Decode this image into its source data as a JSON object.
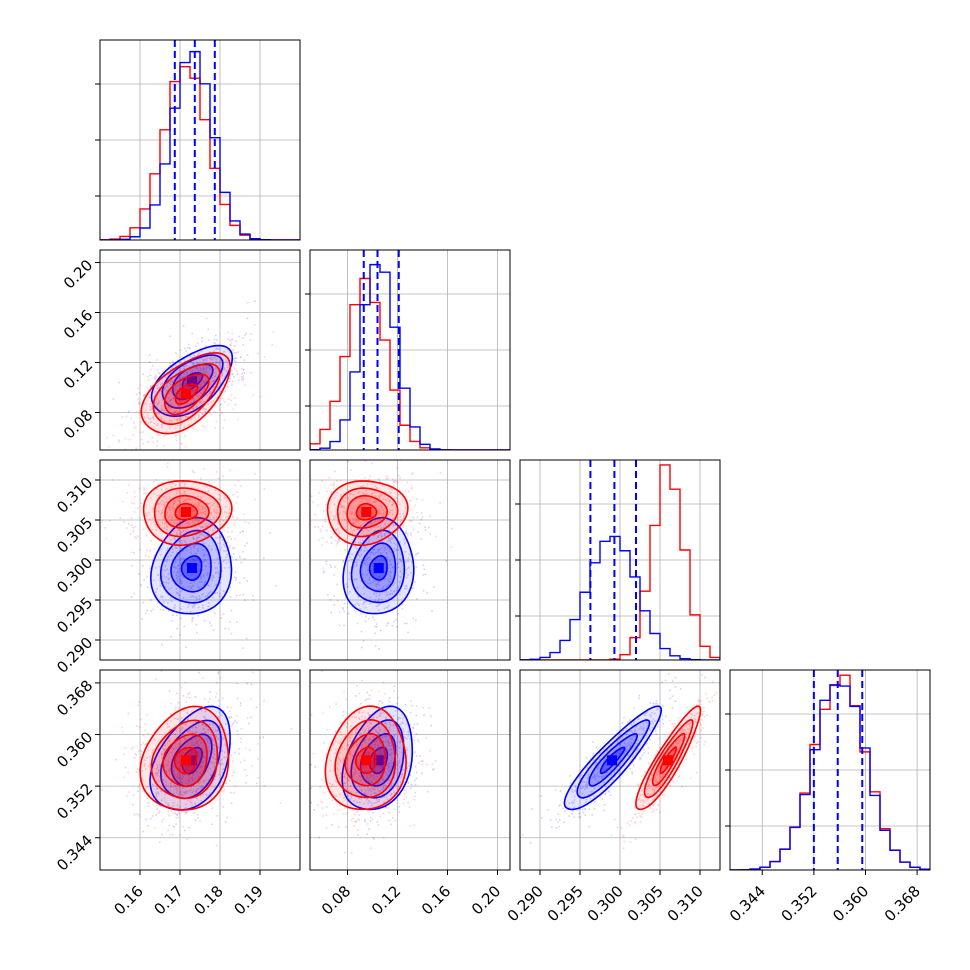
{
  "chart_data": {
    "type": "corner",
    "description_free": true,
    "series": [
      {
        "name": "",
        "color": "#0000ff"
      },
      {
        "name": "",
        "color": "#ff0000"
      }
    ],
    "parameters": [
      {
        "id": "p1",
        "mean_blue": 0.173,
        "std_blue": 0.005,
        "mean_red": 0.1715,
        "std_red": 0.0055,
        "xlim": [
          0.15,
          0.2
        ],
        "ticks": [
          0.16,
          0.17,
          0.18,
          0.19
        ],
        "tick_labels": [
          "0.16",
          "0.17",
          "0.18",
          "0.19"
        ],
        "quantiles_blue": [
          0.1687,
          0.1737,
          0.1787
        ]
      },
      {
        "id": "p2",
        "mean_blue": 0.105,
        "std_blue": 0.014,
        "mean_red": 0.095,
        "std_red": 0.016,
        "xlim": [
          0.05,
          0.21
        ],
        "ticks": [
          0.08,
          0.12,
          0.16,
          0.2
        ],
        "tick_labels": [
          "0.08",
          "0.12",
          "0.16",
          "0.20"
        ],
        "quantiles_blue": [
          0.093,
          0.104,
          0.121
        ]
      },
      {
        "id": "p3",
        "mean_blue": 0.299,
        "std_blue": 0.003,
        "mean_red": 0.306,
        "std_red": 0.002,
        "xlim": [
          0.2875,
          0.3125
        ],
        "ticks": [
          0.29,
          0.295,
          0.3,
          0.305,
          0.31
        ],
        "tick_labels": [
          "0.290",
          "0.295",
          "0.300",
          "0.305",
          "0.310"
        ],
        "quantiles_blue": [
          0.2963,
          0.2993,
          0.302
        ]
      },
      {
        "id": "p4",
        "mean_blue": 0.356,
        "std_blue": 0.004,
        "mean_red": 0.356,
        "std_red": 0.004,
        "xlim": [
          0.339,
          0.37
        ],
        "ticks": [
          0.344,
          0.352,
          0.36,
          0.368
        ],
        "tick_labels": [
          "0.344",
          "0.352",
          "0.360",
          "0.368"
        ],
        "quantiles_blue": [
          0.352,
          0.3557,
          0.3595
        ]
      }
    ],
    "correlations": {
      "blue": [
        [
          1,
          0.55,
          0.1,
          0.4
        ],
        [
          0.55,
          1,
          0.1,
          0.3
        ],
        [
          0.1,
          0.1,
          1,
          0.9
        ],
        [
          0.4,
          0.3,
          0.9,
          1
        ]
      ],
      "red": [
        [
          1,
          0.55,
          0.05,
          0.15
        ],
        [
          0.55,
          1,
          0.05,
          0.1
        ],
        [
          0.05,
          0.05,
          1,
          0.9
        ],
        [
          0.15,
          0.1,
          0.9,
          1
        ]
      ]
    },
    "contour_levels_sigma": [
      0.5,
      1.0,
      1.5,
      2.0
    ],
    "grid": true,
    "xlabel": "",
    "ylabel": ""
  }
}
